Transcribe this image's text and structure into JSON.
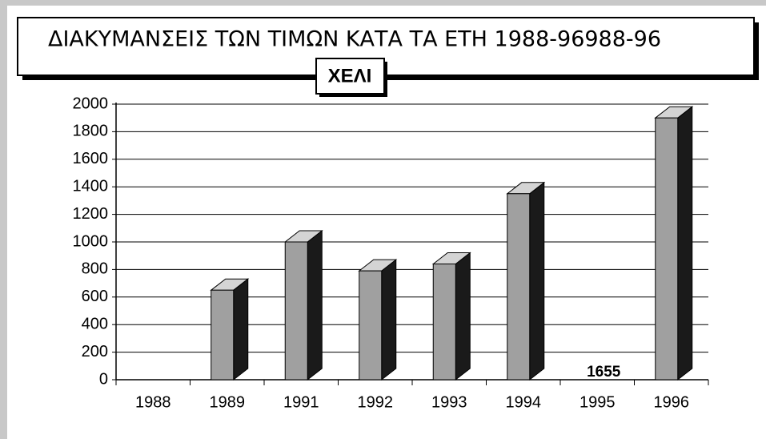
{
  "chart_data": {
    "type": "bar",
    "title": "ΔΙΑΚΥΜΑΝΣΕΙΣ ΤΩΝ ΤΙΜΩΝ ΚΑΤΑ ΤΑ ΕΤΗ 1988-96988-96",
    "subtitle": "ΧΕΛΙ",
    "annotation": "1655",
    "categories": [
      "1988",
      "1989",
      "1991",
      "1992",
      "1993",
      "1994",
      "1995",
      "1996"
    ],
    "values": [
      null,
      650,
      1000,
      790,
      840,
      1350,
      null,
      1900
    ],
    "color": "#a0a0a0",
    "ylim": [
      0,
      2000
    ],
    "yticks": [
      0,
      200,
      400,
      600,
      800,
      1000,
      1200,
      1400,
      1600,
      1800,
      2000
    ],
    "grid": true
  }
}
